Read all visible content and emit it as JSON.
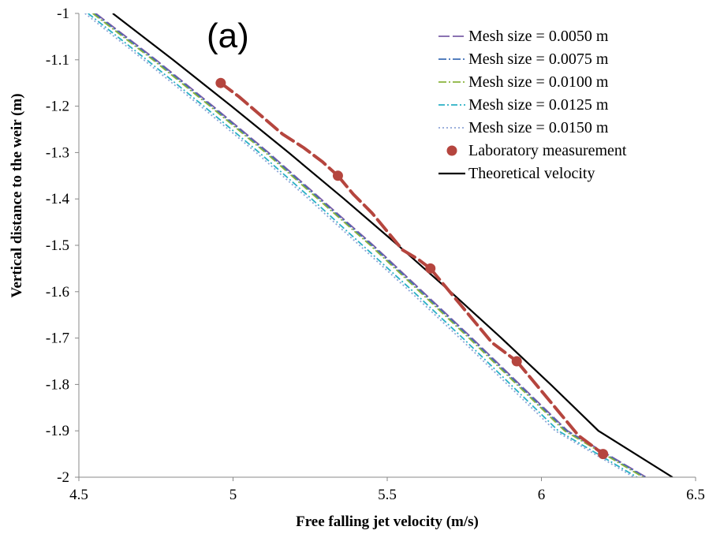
{
  "chart_data": {
    "type": "line",
    "panel_label": "(a)",
    "xlabel": "Free falling  jet velocity (m/s)",
    "ylabel": "Vertical distance to the weir (m)",
    "xlim": [
      4.5,
      6.5
    ],
    "ylim": [
      -2,
      -1
    ],
    "xticks": [
      4.5,
      5,
      5.5,
      6,
      6.5
    ],
    "xtick_labels": [
      "4.5",
      "5",
      "5.5",
      "6",
      "6.5"
    ],
    "yticks": [
      -1,
      -1.1,
      -1.2,
      -1.3,
      -1.4,
      -1.5,
      -1.6,
      -1.7,
      -1.8,
      -1.9,
      -2
    ],
    "ytick_labels": [
      "-1",
      "-1.1",
      "-1.2",
      "-1.3",
      "-1.4",
      "-1.5",
      "-1.6",
      "-1.7",
      "-1.8",
      "-1.9",
      "-2"
    ],
    "grid": false,
    "legend_position": "top-right",
    "series": [
      {
        "name": "Mesh size = 0.0050 m",
        "color": "#7b5ea7",
        "dash": "14,4",
        "points": [
          [
            4.555,
            -1.0
          ],
          [
            4.75,
            -1.1
          ],
          [
            4.935,
            -1.2
          ],
          [
            5.115,
            -1.3
          ],
          [
            5.285,
            -1.4
          ],
          [
            5.455,
            -1.5
          ],
          [
            5.615,
            -1.6
          ],
          [
            5.775,
            -1.7
          ],
          [
            5.93,
            -1.8
          ],
          [
            6.085,
            -1.9
          ],
          [
            6.34,
            -2.0
          ]
        ]
      },
      {
        "name": "Mesh size = 0.0075 m",
        "color": "#3d6db5",
        "dash": "10,3,2,3",
        "points": [
          [
            4.55,
            -1.0
          ],
          [
            4.745,
            -1.1
          ],
          [
            4.93,
            -1.2
          ],
          [
            5.11,
            -1.3
          ],
          [
            5.28,
            -1.4
          ],
          [
            5.45,
            -1.5
          ],
          [
            5.61,
            -1.6
          ],
          [
            5.77,
            -1.7
          ],
          [
            5.925,
            -1.8
          ],
          [
            6.08,
            -1.9
          ],
          [
            6.335,
            -2.0
          ]
        ]
      },
      {
        "name": "Mesh size = 0.0100 m",
        "color": "#8ab43c",
        "dash": "10,3,2,3",
        "points": [
          [
            4.545,
            -1.0
          ],
          [
            4.74,
            -1.1
          ],
          [
            4.925,
            -1.2
          ],
          [
            5.105,
            -1.3
          ],
          [
            5.275,
            -1.4
          ],
          [
            5.445,
            -1.5
          ],
          [
            5.605,
            -1.6
          ],
          [
            5.765,
            -1.7
          ],
          [
            5.92,
            -1.8
          ],
          [
            6.075,
            -1.9
          ],
          [
            6.33,
            -2.0
          ]
        ]
      },
      {
        "name": "Mesh size = 0.0125 m",
        "color": "#2ab0c5",
        "dash": "8,3,2,3",
        "points": [
          [
            4.53,
            -1.0
          ],
          [
            4.72,
            -1.1
          ],
          [
            4.905,
            -1.2
          ],
          [
            5.085,
            -1.3
          ],
          [
            5.255,
            -1.4
          ],
          [
            5.42,
            -1.5
          ],
          [
            5.585,
            -1.6
          ],
          [
            5.745,
            -1.7
          ],
          [
            5.9,
            -1.8
          ],
          [
            6.055,
            -1.9
          ],
          [
            6.31,
            -2.0
          ]
        ]
      },
      {
        "name": "Mesh size = 0.0150 m",
        "color": "#8fa5d8",
        "dash": "2,3",
        "points": [
          [
            4.52,
            -1.0
          ],
          [
            4.71,
            -1.1
          ],
          [
            4.895,
            -1.2
          ],
          [
            5.075,
            -1.3
          ],
          [
            5.245,
            -1.4
          ],
          [
            5.41,
            -1.5
          ],
          [
            5.575,
            -1.6
          ],
          [
            5.735,
            -1.7
          ],
          [
            5.89,
            -1.8
          ],
          [
            6.045,
            -1.9
          ],
          [
            6.3,
            -2.0
          ]
        ]
      },
      {
        "name": "Theoretical velocity",
        "color": "#000000",
        "dash": "",
        "points": [
          [
            4.61,
            -1.0
          ],
          [
            4.805,
            -1.1
          ],
          [
            4.995,
            -1.2
          ],
          [
            5.18,
            -1.3
          ],
          [
            5.36,
            -1.4
          ],
          [
            5.535,
            -1.5
          ],
          [
            5.705,
            -1.6
          ],
          [
            5.87,
            -1.7
          ],
          [
            6.03,
            -1.8
          ],
          [
            6.185,
            -1.9
          ],
          [
            6.425,
            -2.0
          ]
        ]
      }
    ],
    "measurement": {
      "name": "Laboratory measurement",
      "color": "#b5453e",
      "dash": "18,7",
      "points": [
        [
          4.96,
          -1.15
        ],
        [
          5.34,
          -1.35
        ],
        [
          5.64,
          -1.55
        ],
        [
          5.92,
          -1.75
        ],
        [
          6.2,
          -1.95
        ]
      ],
      "segments": [
        [
          [
            4.96,
            -1.15
          ],
          [
            5.02,
            -1.18
          ],
          [
            5.09,
            -1.22
          ],
          [
            5.16,
            -1.26
          ],
          [
            5.23,
            -1.29
          ],
          [
            5.29,
            -1.32
          ],
          [
            5.34,
            -1.35
          ]
        ],
        [
          [
            5.34,
            -1.35
          ],
          [
            5.39,
            -1.39
          ],
          [
            5.45,
            -1.43
          ],
          [
            5.5,
            -1.47
          ],
          [
            5.55,
            -1.51
          ],
          [
            5.6,
            -1.53
          ],
          [
            5.64,
            -1.55
          ]
        ],
        [
          [
            5.64,
            -1.55
          ],
          [
            5.69,
            -1.59
          ],
          [
            5.74,
            -1.63
          ],
          [
            5.79,
            -1.67
          ],
          [
            5.84,
            -1.71
          ],
          [
            5.88,
            -1.73
          ],
          [
            5.92,
            -1.75
          ]
        ],
        [
          [
            5.92,
            -1.75
          ],
          [
            5.97,
            -1.79
          ],
          [
            6.02,
            -1.83
          ],
          [
            6.07,
            -1.87
          ],
          [
            6.12,
            -1.91
          ],
          [
            6.16,
            -1.93
          ],
          [
            6.2,
            -1.95
          ]
        ]
      ]
    }
  }
}
